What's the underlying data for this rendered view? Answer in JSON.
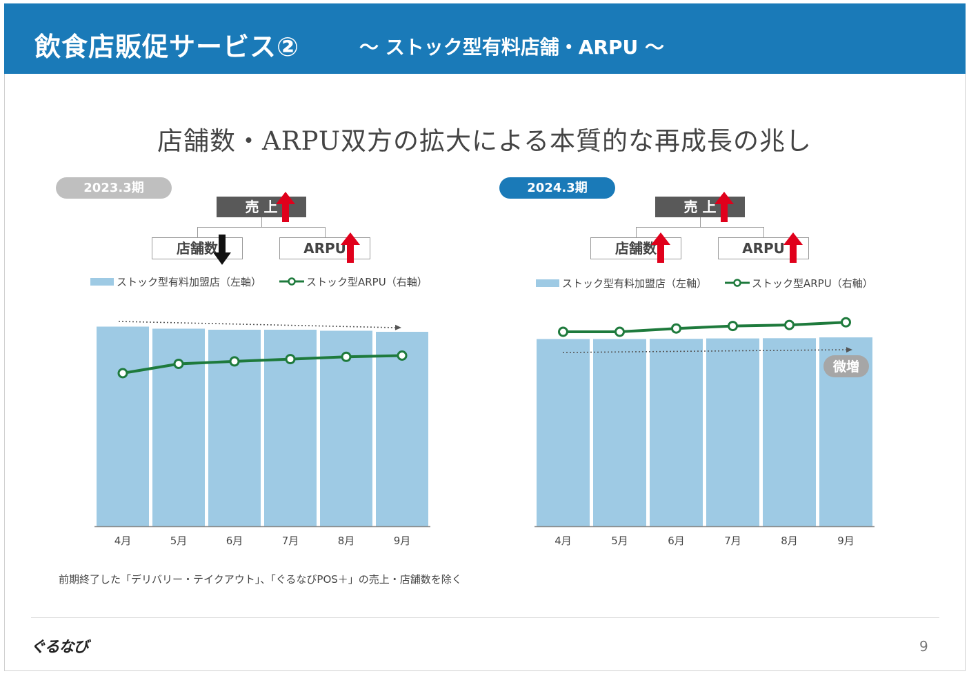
{
  "header": {
    "title": "飲食店販促サービス②",
    "subtitle": "～ ストック型有料店舗・ARPU ～"
  },
  "headline": "店舗数・ARPU双方の拡大による本質的な再成長の兆し",
  "colors": {
    "header_bg": "#1a7ab8",
    "bar": "#9ecae4",
    "line": "#1e7a3c",
    "up_arrow": "#e0001b",
    "down_arrow": "#111111",
    "badge_prev": "#bfbfbf",
    "badge_curr": "#1a7ab8",
    "tree_top": "#595959"
  },
  "panels": [
    {
      "period_label": "2023.3期",
      "tree": {
        "top_label": "売 上",
        "top_trend": "up",
        "children": [
          {
            "label": "店舗数",
            "trend": "down"
          },
          {
            "label": "ARPU",
            "trend": "up"
          }
        ]
      },
      "legend": {
        "bar_label": "ストック型有料加盟店（左軸）",
        "line_label": "ストック型ARPU（右軸）"
      }
    },
    {
      "period_label": "2024.3期",
      "tree": {
        "top_label": "売 上",
        "top_trend": "up",
        "children": [
          {
            "label": "店舗数",
            "trend": "up"
          },
          {
            "label": "ARPU",
            "trend": "up"
          }
        ]
      },
      "legend": {
        "bar_label": "ストック型有料加盟店（左軸）",
        "line_label": "ストック型ARPU（右軸）"
      },
      "annotation": "微増"
    }
  ],
  "chart_data": [
    {
      "type": "bar",
      "title": "2023.3期",
      "categories": [
        "4月",
        "5月",
        "6月",
        "7月",
        "8月",
        "9月"
      ],
      "series": [
        {
          "name": "ストック型有料加盟店（左軸）",
          "type": "bar",
          "axis": "left",
          "values": [
            96.5,
            95.5,
            95.0,
            95.0,
            94.5,
            94.0
          ]
        },
        {
          "name": "ストック型ARPU（右軸）",
          "type": "line",
          "axis": "right",
          "values": [
            74.0,
            78.5,
            79.7,
            80.8,
            81.9,
            82.5
          ]
        }
      ],
      "ylim": [
        0,
        100
      ],
      "y2lim": [
        0,
        100
      ],
      "ytick_labels_shown": false,
      "trend_arrow": "dotted, gently declining"
    },
    {
      "type": "bar",
      "title": "2024.3期",
      "categories": [
        "4月",
        "5月",
        "6月",
        "7月",
        "8月",
        "9月"
      ],
      "series": [
        {
          "name": "ストック型有料加盟店（左軸）",
          "type": "bar",
          "axis": "left",
          "values": [
            90.5,
            90.5,
            90.6,
            90.8,
            90.9,
            91.3
          ]
        },
        {
          "name": "ストック型ARPU（右軸）",
          "type": "line",
          "axis": "right",
          "values": [
            94.0,
            94.0,
            95.6,
            96.8,
            97.3,
            98.6
          ]
        }
      ],
      "ylim": [
        0,
        100
      ],
      "y2lim": [
        0,
        100
      ],
      "ytick_labels_shown": false,
      "trend_arrow": "dotted, slightly rising"
    }
  ],
  "footnote": "前期終了した「デリバリー・テイクアウト」、「ぐるなびPOS＋」の売上・店舗数を除く",
  "footer": {
    "logo_text": "ぐるなび",
    "page_number": "9"
  }
}
